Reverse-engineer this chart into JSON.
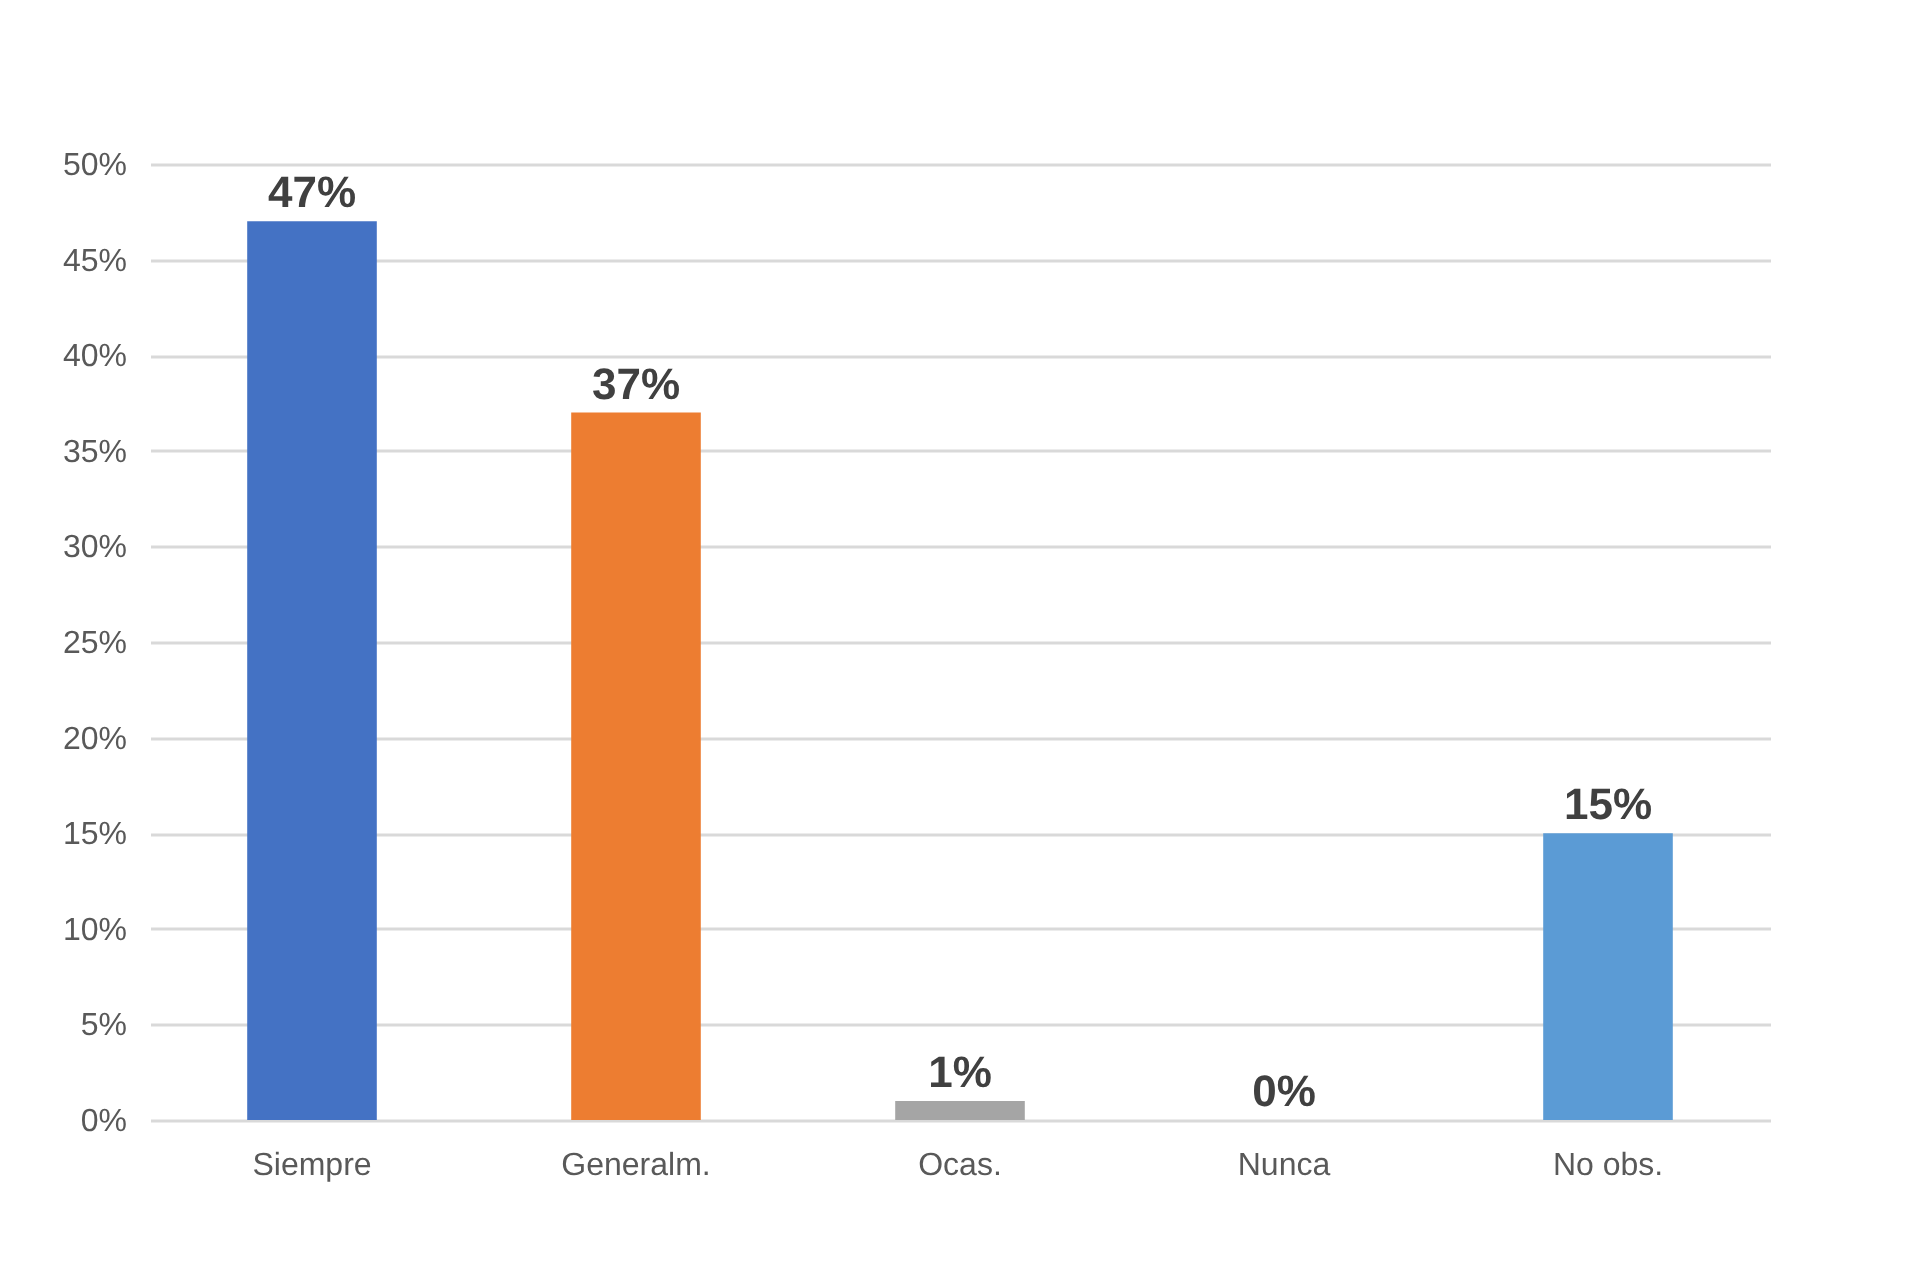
{
  "chart_data": {
    "type": "bar",
    "categories": [
      "Siempre",
      "Generalm.",
      "Ocas.",
      "Nunca",
      "No obs."
    ],
    "values": [
      47,
      37,
      1,
      0,
      15
    ],
    "colors": [
      "#4472c4",
      "#ed7d31",
      "#a5a5a5",
      "#c59a00",
      "#5b9bd5"
    ],
    "value_labels": [
      "47%",
      "37%",
      "1%",
      "0%",
      "15%"
    ],
    "ylim": [
      0,
      50
    ],
    "yticks": [
      {
        "value": 0,
        "label": "0%"
      },
      {
        "value": 5,
        "label": "5%"
      },
      {
        "value": 10,
        "label": "10%"
      },
      {
        "value": 15,
        "label": "15%"
      },
      {
        "value": 20,
        "label": "20%"
      },
      {
        "value": 25,
        "label": "25%"
      },
      {
        "value": 30,
        "label": "30%"
      },
      {
        "value": 35,
        "label": "35%"
      },
      {
        "value": 40,
        "label": "40%"
      },
      {
        "value": 45,
        "label": "45%"
      },
      {
        "value": 50,
        "label": "50%"
      }
    ],
    "grid": "y"
  }
}
